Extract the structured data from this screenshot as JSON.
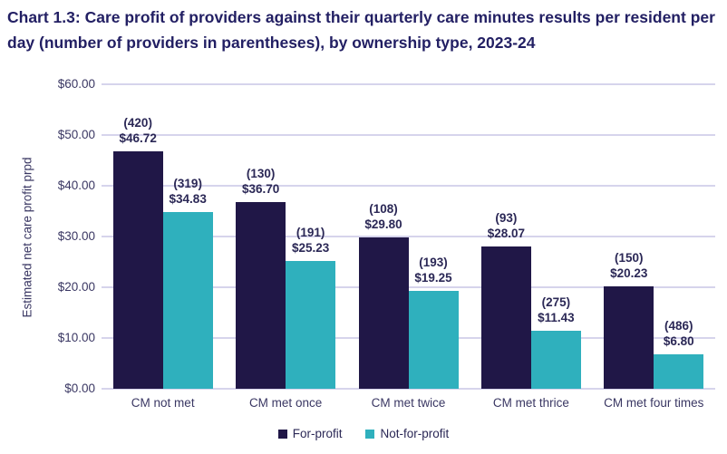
{
  "title": "Chart 1.3: Care profit of providers against their quarterly care minutes results per resident per day (number of providers in parentheses), by ownership type, 2023-24",
  "colors": {
    "title_text": "#221f63",
    "axis_text": "#3a3763",
    "data_label_text": "#2b2856",
    "gridline": "#d6d4ec",
    "for_profit": "#201747",
    "not_for_profit": "#2fb0bd",
    "background": "#ffffff"
  },
  "chart_data": {
    "type": "bar",
    "title": "Chart 1.3: Care profit of providers against their quarterly care minutes results per resident per day (number of providers in parentheses), by ownership type, 2023-24",
    "xlabel": "",
    "ylabel": "Estimated net care profit prpd",
    "ylim": [
      0,
      60
    ],
    "ytick_values": [
      0,
      10,
      20,
      30,
      40,
      50,
      60
    ],
    "ytick_labels": [
      "$0.00",
      "$10.00",
      "$20.00",
      "$30.00",
      "$40.00",
      "$50.00",
      "$60.00"
    ],
    "grid": true,
    "categories": [
      "CM not met",
      "CM met once",
      "CM met twice",
      "CM met thrice",
      "CM met four times"
    ],
    "series": [
      {
        "name": "For-profit",
        "color": "#201747",
        "values": [
          46.72,
          36.7,
          29.8,
          28.07,
          20.23
        ],
        "counts": [
          420,
          130,
          108,
          93,
          150
        ],
        "count_labels": [
          "(420)",
          "(130)",
          "(108)",
          "(93)",
          "(150)"
        ],
        "value_labels": [
          "$46.72",
          "$36.70",
          "$29.80",
          "$28.07",
          "$20.23"
        ]
      },
      {
        "name": "Not-for-profit",
        "color": "#2fb0bd",
        "values": [
          34.83,
          25.23,
          19.25,
          11.43,
          6.8
        ],
        "counts": [
          319,
          191,
          193,
          275,
          486
        ],
        "count_labels": [
          "(319)",
          "(191)",
          "(193)",
          "(275)",
          "(486)"
        ],
        "value_labels": [
          "$34.83",
          "$25.23",
          "$19.25",
          "$11.43",
          "$6.80"
        ]
      }
    ],
    "legend": {
      "position": "bottom",
      "entries": [
        "For-profit",
        "Not-for-profit"
      ]
    }
  }
}
